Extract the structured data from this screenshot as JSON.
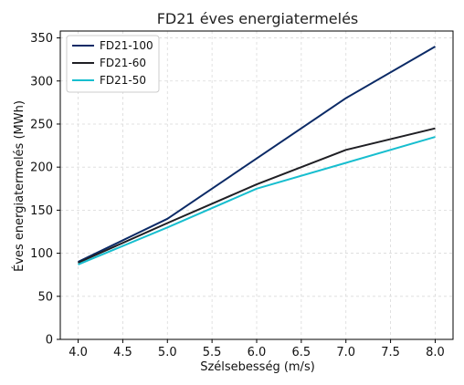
{
  "chart_data": {
    "type": "line",
    "title": "FD21 éves energiatermelés",
    "xlabel": "Szélsebesség (m/s)",
    "ylabel": "Éves energiatermelés (MWh)",
    "x": [
      4.0,
      5.0,
      6.0,
      7.0,
      8.0
    ],
    "xlim": [
      3.8,
      8.2
    ],
    "ylim": [
      0,
      358
    ],
    "xticks": [
      4.0,
      4.5,
      5.0,
      5.5,
      6.0,
      6.5,
      7.0,
      7.5,
      8.0
    ],
    "xtick_labels": [
      "4.0",
      "4.5",
      "5.0",
      "5.5",
      "6.0",
      "6.5",
      "7.0",
      "7.5",
      "8.0"
    ],
    "yticks": [
      0,
      50,
      100,
      150,
      200,
      250,
      300,
      350
    ],
    "ytick_labels": [
      "0",
      "50",
      "100",
      "150",
      "200",
      "250",
      "300",
      "350"
    ],
    "grid": true,
    "legend_position": "top-left",
    "series": [
      {
        "name": "FD21-100",
        "color": "#0b2a66",
        "values": [
          90,
          140,
          210,
          280,
          340
        ]
      },
      {
        "name": "FD21-60",
        "color": "#1f1f24",
        "values": [
          89,
          135,
          180,
          220,
          245
        ]
      },
      {
        "name": "FD21-50",
        "color": "#17becf",
        "values": [
          87,
          130,
          175,
          205,
          235
        ]
      }
    ]
  }
}
